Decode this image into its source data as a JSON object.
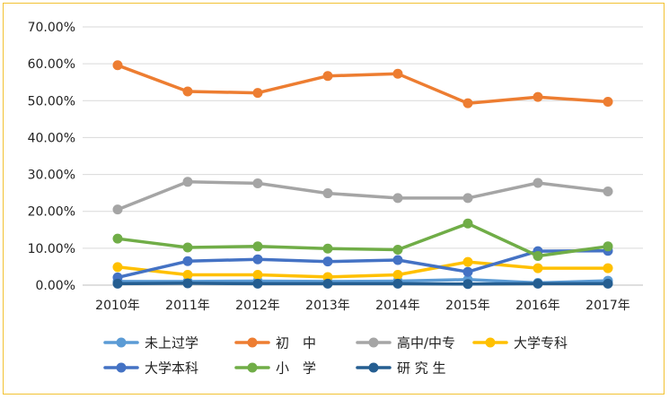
{
  "chart_data": {
    "type": "line",
    "title": "",
    "xlabel": "",
    "ylabel": "",
    "x": [
      "2010年",
      "2011年",
      "2012年",
      "2013年",
      "2014年",
      "2015年",
      "2016年",
      "2017年"
    ],
    "ylim": [
      0,
      0.7
    ],
    "yticks": [
      "0.00%",
      "10.00%",
      "20.00%",
      "30.00%",
      "40.00%",
      "50.00%",
      "60.00%",
      "70.00%"
    ],
    "grid": true,
    "legend_position": "bottom",
    "series": [
      {
        "name": "未上过学",
        "color": "#5b9bd5",
        "values": [
          0.01,
          0.01,
          0.011,
          0.01,
          0.011,
          0.015,
          0.006,
          0.012
        ]
      },
      {
        "name": "初　中",
        "color": "#ed7d31",
        "values": [
          0.596,
          0.525,
          0.521,
          0.567,
          0.573,
          0.493,
          0.51,
          0.497
        ]
      },
      {
        "name": "高中/中专",
        "color": "#a5a5a5",
        "values": [
          0.205,
          0.28,
          0.276,
          0.249,
          0.236,
          0.236,
          0.277,
          0.254
        ]
      },
      {
        "name": "大学专科",
        "color": "#ffc000",
        "values": [
          0.049,
          0.028,
          0.028,
          0.022,
          0.028,
          0.063,
          0.046,
          0.046
        ]
      },
      {
        "name": "大学本科",
        "color": "#4472c4",
        "values": [
          0.021,
          0.065,
          0.07,
          0.064,
          0.068,
          0.036,
          0.092,
          0.093
        ]
      },
      {
        "name": "小　学",
        "color": "#70ad47",
        "values": [
          0.126,
          0.102,
          0.105,
          0.099,
          0.096,
          0.167,
          0.079,
          0.105
        ]
      },
      {
        "name": "研 究 生",
        "color": "#255e91",
        "values": [
          0.004,
          0.005,
          0.004,
          0.004,
          0.004,
          0.003,
          0.004,
          0.004
        ]
      }
    ]
  }
}
